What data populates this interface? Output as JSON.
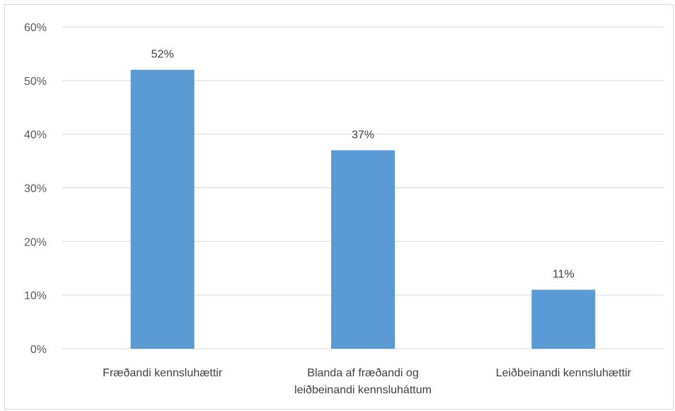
{
  "chart_data": {
    "type": "bar",
    "title": "",
    "xlabel": "",
    "ylabel": "",
    "categories": [
      [
        "Fræðandi kennsluhættir"
      ],
      [
        "Blanda af fræðandi og",
        "leiðbeinandi kennsluháttum"
      ],
      [
        "Leiðbeinandi kennsluhættir"
      ]
    ],
    "values": [
      52,
      37,
      11
    ],
    "data_labels": [
      "52%",
      "37%",
      "11%"
    ],
    "ylim": [
      0,
      60
    ],
    "yticks": [
      0,
      10,
      20,
      30,
      40,
      50,
      60
    ],
    "ytick_labels": [
      "0%",
      "10%",
      "20%",
      "30%",
      "40%",
      "50%",
      "60%"
    ],
    "grid": true,
    "legend": "none",
    "bar_color": "#5b9bd5",
    "grid_color": "#d9d9d9"
  }
}
